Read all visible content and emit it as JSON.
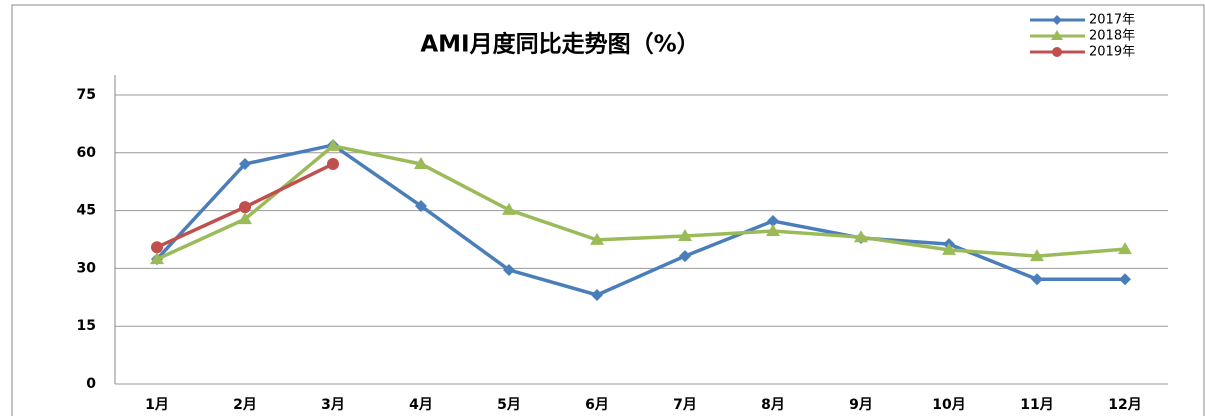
{
  "chart_data": {
    "type": "line",
    "title": "AMI月度同比走势图（%）",
    "categories": [
      "1月",
      "2月",
      "3月",
      "4月",
      "5月",
      "6月",
      "7月",
      "8月",
      "9月",
      "10月",
      "11月",
      "12月"
    ],
    "series": [
      {
        "name": "2017年",
        "color": "#4a7ebb",
        "marker": "diamond",
        "values": [
          32.4,
          57.1,
          62,
          46.2,
          29.6,
          23.1,
          33.2,
          42.3,
          37.9,
          36.3,
          27.2,
          27.2
        ]
      },
      {
        "name": "2018年",
        "color": "#9bbb59",
        "marker": "triangle",
        "values": [
          32.4,
          42.8,
          61.8,
          57.1,
          45.2,
          37.4,
          38.4,
          39.7,
          38.1,
          34.8,
          33.2,
          35.0
        ]
      },
      {
        "name": "2019年",
        "color": "#c0504d",
        "marker": "circle",
        "values": [
          35.5,
          45.9,
          57.1,
          null,
          null,
          null,
          null,
          null,
          null,
          null,
          null,
          null
        ]
      }
    ],
    "ylim": [
      0,
      75
    ],
    "yticks": [
      0,
      15,
      30,
      45,
      60,
      75
    ],
    "grid": true,
    "legend": "top-right"
  }
}
